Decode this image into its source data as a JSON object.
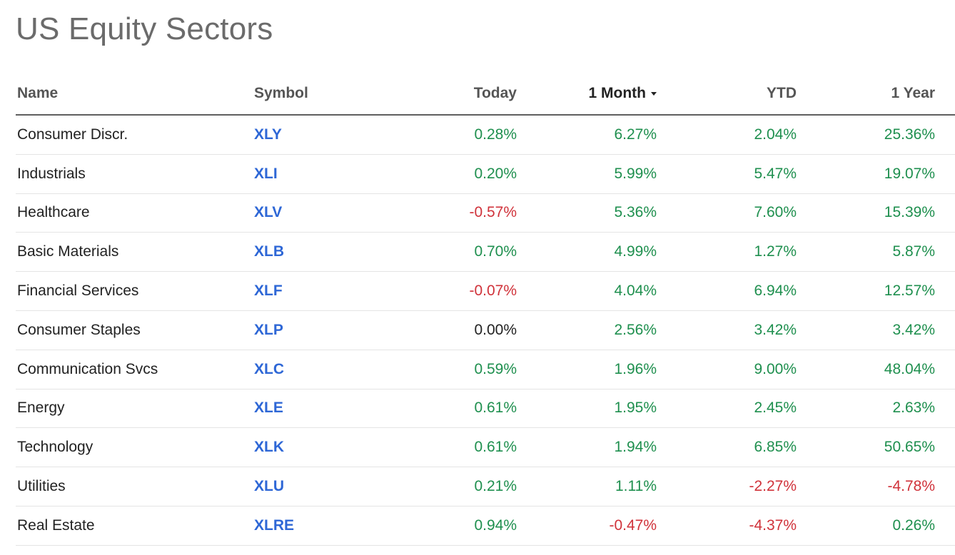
{
  "title": "US Equity Sectors",
  "columns": {
    "name": "Name",
    "symbol": "Symbol",
    "today": "Today",
    "month": "1 Month",
    "ytd": "YTD",
    "year": "1 Year"
  },
  "sort": {
    "column": "1 Month",
    "direction": "descending"
  },
  "colors": {
    "positive": "#1e8f4e",
    "negative": "#d0323a",
    "link": "#2e67d6"
  },
  "rows": [
    {
      "name": "Consumer Discr.",
      "symbol": "XLY",
      "today": "0.28%",
      "month": "6.27%",
      "ytd": "2.04%",
      "year": "25.36%"
    },
    {
      "name": "Industrials",
      "symbol": "XLI",
      "today": "0.20%",
      "month": "5.99%",
      "ytd": "5.47%",
      "year": "19.07%"
    },
    {
      "name": "Healthcare",
      "symbol": "XLV",
      "today": "-0.57%",
      "month": "5.36%",
      "ytd": "7.60%",
      "year": "15.39%"
    },
    {
      "name": "Basic Materials",
      "symbol": "XLB",
      "today": "0.70%",
      "month": "4.99%",
      "ytd": "1.27%",
      "year": "5.87%"
    },
    {
      "name": "Financial Services",
      "symbol": "XLF",
      "today": "-0.07%",
      "month": "4.04%",
      "ytd": "6.94%",
      "year": "12.57%"
    },
    {
      "name": "Consumer Staples",
      "symbol": "XLP",
      "today": "0.00%",
      "month": "2.56%",
      "ytd": "3.42%",
      "year": "3.42%"
    },
    {
      "name": "Communication Svcs",
      "symbol": "XLC",
      "today": "0.59%",
      "month": "1.96%",
      "ytd": "9.00%",
      "year": "48.04%"
    },
    {
      "name": "Energy",
      "symbol": "XLE",
      "today": "0.61%",
      "month": "1.95%",
      "ytd": "2.45%",
      "year": "2.63%"
    },
    {
      "name": "Technology",
      "symbol": "XLK",
      "today": "0.61%",
      "month": "1.94%",
      "ytd": "6.85%",
      "year": "50.65%"
    },
    {
      "name": "Utilities",
      "symbol": "XLU",
      "today": "0.21%",
      "month": "1.11%",
      "ytd": "-2.27%",
      "year": "-4.78%"
    },
    {
      "name": "Real Estate",
      "symbol": "XLRE",
      "today": "0.94%",
      "month": "-0.47%",
      "ytd": "-4.37%",
      "year": "0.26%"
    }
  ]
}
